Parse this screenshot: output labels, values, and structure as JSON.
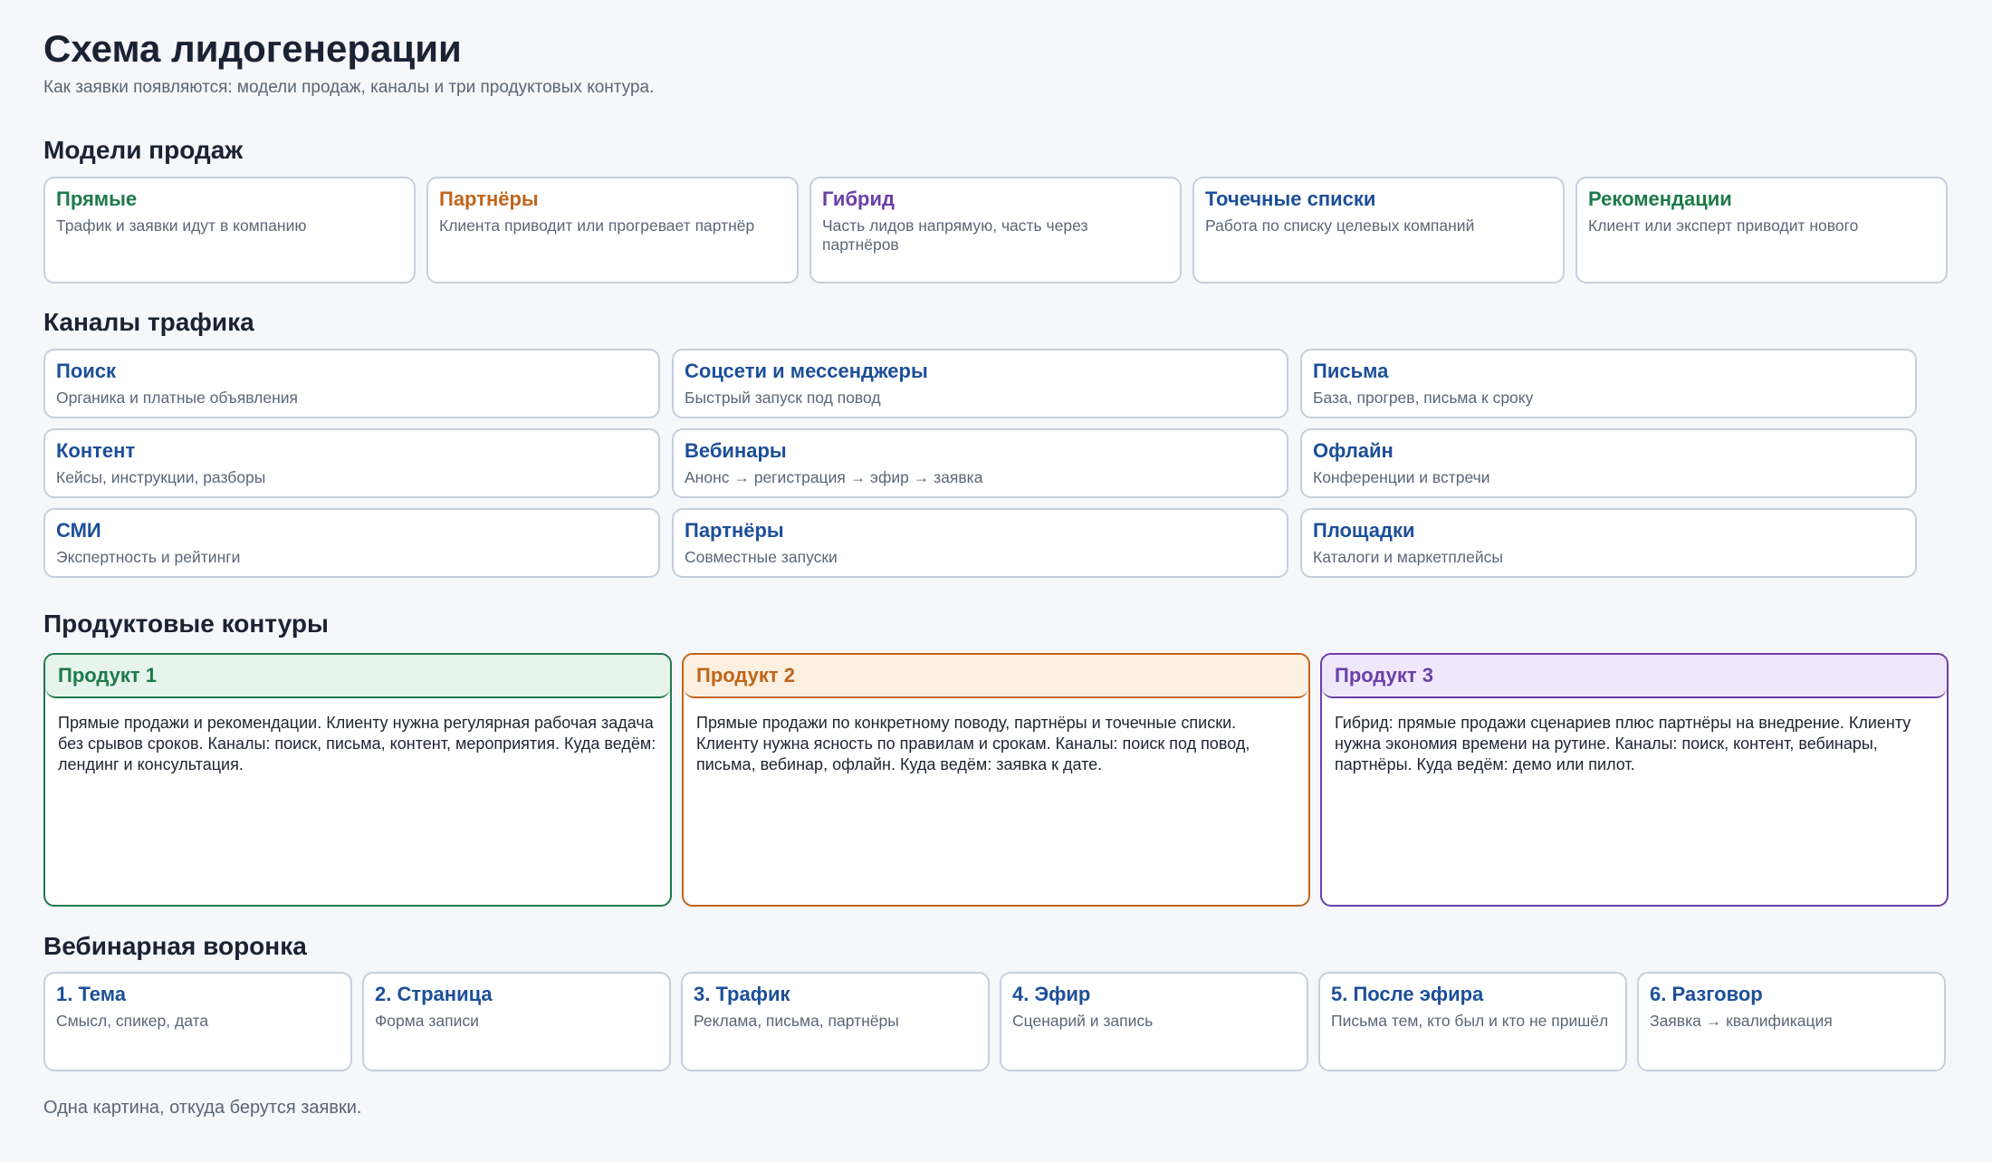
{
  "header": {
    "title": "Схема лидогенерации",
    "subtitle": "Как заявки появляются: модели продаж, каналы и три продуктовых контура."
  },
  "colors": {
    "green": "#1e7a4a",
    "orange": "#c0651a",
    "purple": "#6b3fa8",
    "blue": "#1d4f99",
    "green_bg": "#e6f4ec",
    "orange_bg": "#fdf0e0",
    "purple_bg": "#efe8fb"
  },
  "models": {
    "title": "Модели продаж",
    "items": [
      {
        "title": "Прямые",
        "desc": "Трафик и заявки идут в компанию",
        "color": "#1e7a4a"
      },
      {
        "title": "Партнёры",
        "desc": "Клиента приводит или прогревает партнёр",
        "color": "#c0651a"
      },
      {
        "title": "Гибрид",
        "desc": "Часть лидов напрямую, часть через партнёров",
        "color": "#6b3fa8"
      },
      {
        "title": "Точечные списки",
        "desc": "Работа по списку целевых компаний",
        "color": "#1d4f99"
      },
      {
        "title": "Рекомендации",
        "desc": "Клиент или эксперт приводит нового",
        "color": "#1e7a4a"
      }
    ]
  },
  "channels": {
    "title": "Каналы трафика",
    "items": [
      {
        "title": "Поиск",
        "desc": "Органика и платные объявления"
      },
      {
        "title": "Соцсети и мессенджеры",
        "desc": "Быстрый запуск под повод"
      },
      {
        "title": "Письма",
        "desc": "База, прогрев, письма к сроку"
      },
      {
        "title": "Контент",
        "desc": "Кейсы, инструкции, разборы"
      },
      {
        "title": "Вебинары",
        "desc": "Анонс → регистрация → эфир → заявка"
      },
      {
        "title": "Офлайн",
        "desc": "Конференции и встречи"
      },
      {
        "title": "СМИ",
        "desc": "Экспертность и рейтинги"
      },
      {
        "title": "Партнёры",
        "desc": "Совместные запуски"
      },
      {
        "title": "Площадки",
        "desc": "Каталоги и маркетплейсы"
      }
    ]
  },
  "products": {
    "title": "Продуктовые контуры",
    "items": [
      {
        "title": "Продукт 1",
        "body": "Прямые продажи и рекомендации. Клиенту нужна регулярная рабочая задача без срывов сроков. Каналы: поиск, письма, контент, мероприятия. Куда ведём: лендинг и консультация."
      },
      {
        "title": "Продукт 2",
        "body": "Прямые продажи по конкретному поводу, партнёры и точечные списки. Клиенту нужна ясность по правилам и срокам. Каналы: поиск под повод, письма, вебинар, офлайн. Куда ведём: заявка к дате."
      },
      {
        "title": "Продукт 3",
        "body": "Гибрид: прямые продажи сценариев плюс партнёры на внедрение. Клиенту нужна экономия времени на рутине. Каналы: поиск, контент, вебинары, партнёры. Куда ведём: демо или пилот."
      }
    ]
  },
  "funnel": {
    "title": "Вебинарная воронка",
    "items": [
      {
        "title": "1. Тема",
        "desc": "Смысл, спикер, дата"
      },
      {
        "title": "2. Страница",
        "desc": "Форма записи"
      },
      {
        "title": "3. Трафик",
        "desc": "Реклама, письма, партнёры"
      },
      {
        "title": "4. Эфир",
        "desc": "Сценарий и запись"
      },
      {
        "title": "5. После эфира",
        "desc": "Письма тем, кто был и кто не пришёл"
      },
      {
        "title": "6. Разговор",
        "desc": "Заявка → квалификация"
      }
    ]
  },
  "footer": {
    "text": "Одна картина, откуда берутся заявки."
  }
}
